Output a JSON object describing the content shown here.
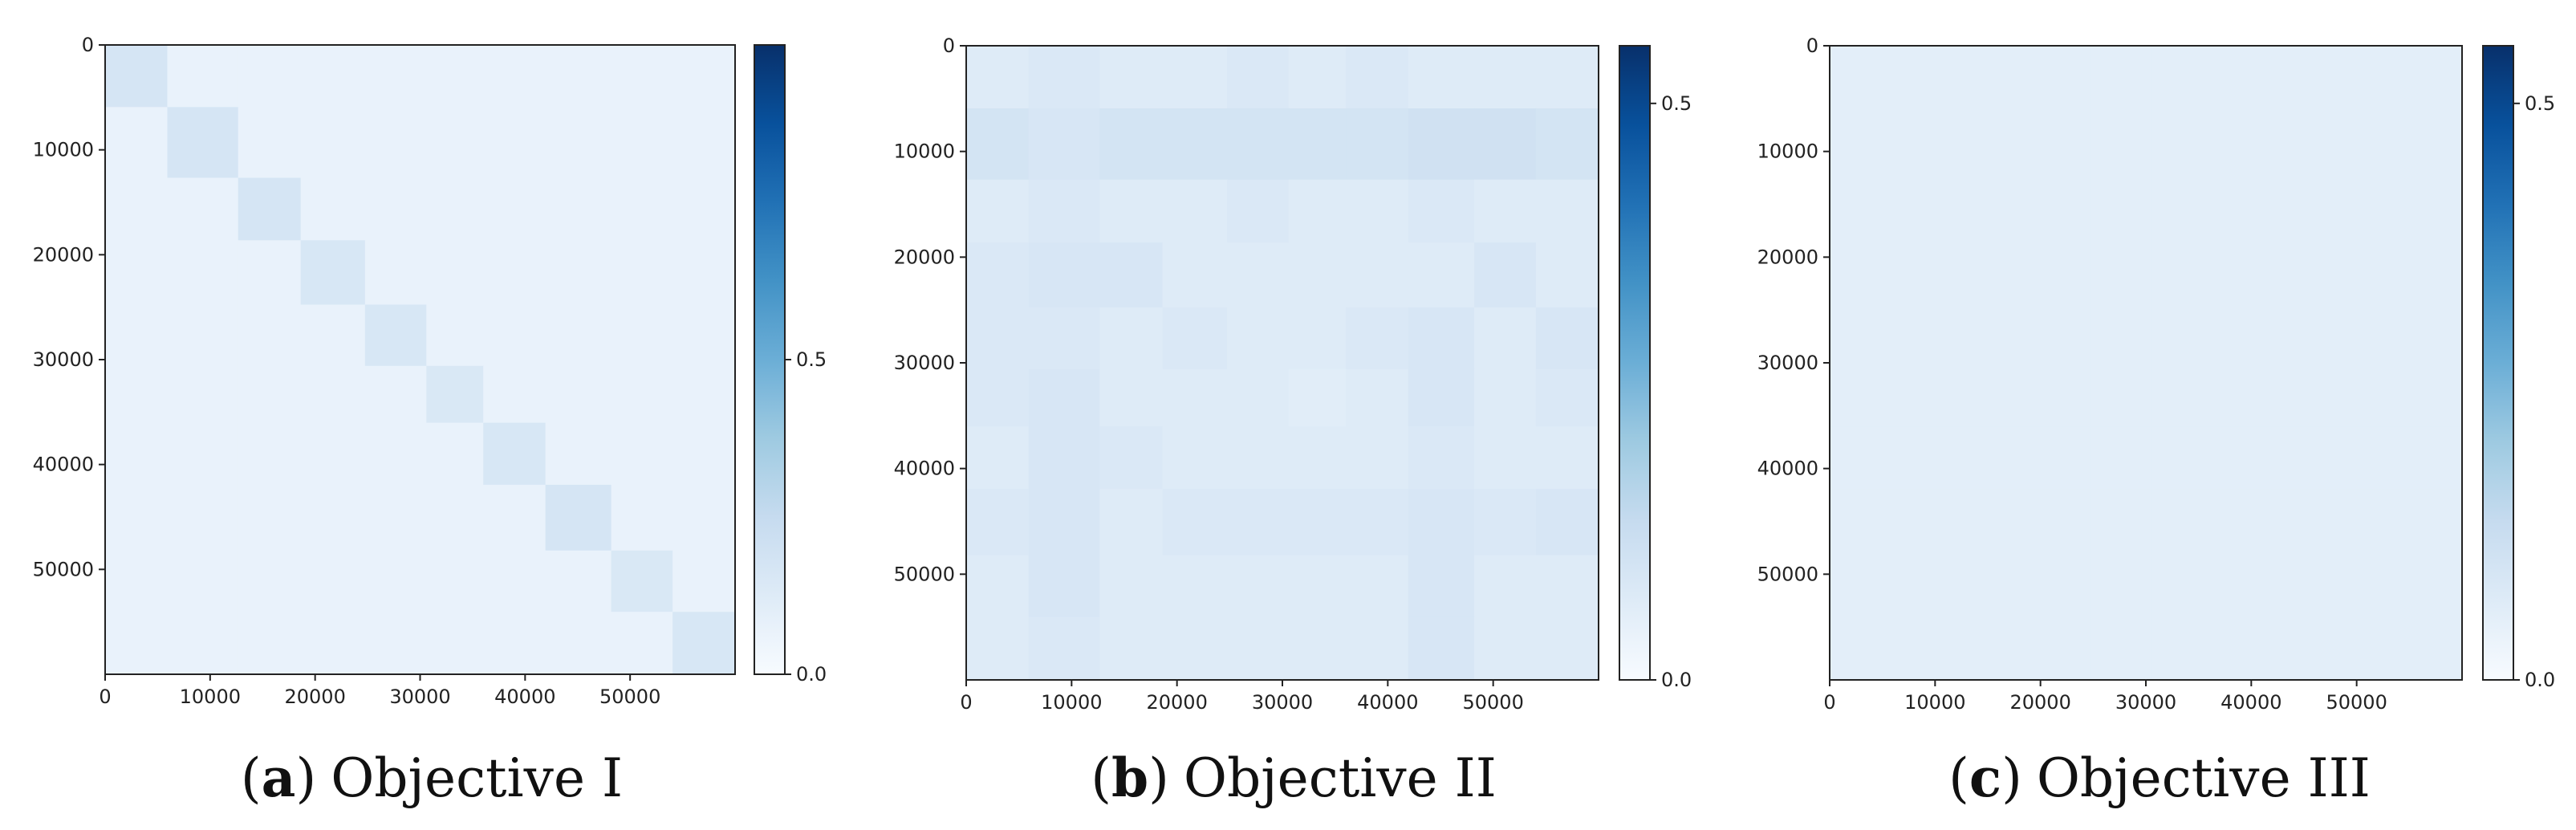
{
  "chart_data": [
    {
      "type": "heatmap",
      "caption_letter": "a",
      "caption_title": "Objective I",
      "x_ticks": [
        0,
        10000,
        20000,
        30000,
        40000,
        50000
      ],
      "y_ticks": [
        0,
        10000,
        20000,
        30000,
        40000,
        50000
      ],
      "xlim": [
        0,
        60000
      ],
      "ylim": [
        60000,
        0
      ],
      "colormap": "Blues",
      "colorbar": {
        "range": [
          0.0,
          1.0
        ],
        "ticks": [
          0.0,
          0.5
        ],
        "tick_labels": [
          "0.0",
          "0.5"
        ]
      },
      "block_boundaries": [
        0,
        5923,
        12665,
        18623,
        24754,
        30596,
        36017,
        41935,
        48200,
        54051,
        60000
      ],
      "diagonal_block_values": [
        0.17,
        0.17,
        0.17,
        0.16,
        0.16,
        0.15,
        0.16,
        0.17,
        0.15,
        0.16
      ],
      "off_diagonal_value": 0.07
    },
    {
      "type": "heatmap",
      "caption_letter": "b",
      "caption_title": "Objective II",
      "x_ticks": [
        0,
        10000,
        20000,
        30000,
        40000,
        50000
      ],
      "y_ticks": [
        0,
        10000,
        20000,
        30000,
        40000,
        50000
      ],
      "xlim": [
        0,
        60000
      ],
      "ylim": [
        60000,
        0
      ],
      "colormap": "Blues",
      "colorbar": {
        "range": [
          0.0,
          0.55
        ],
        "ticks": [
          0.0,
          0.5
        ],
        "tick_labels": [
          "0.0",
          "0.5"
        ]
      },
      "block_boundaries": [
        0,
        5923,
        12665,
        18623,
        24754,
        30596,
        36017,
        41935,
        48200,
        54051,
        60000
      ],
      "block_values": [
        [
          0.07,
          0.08,
          0.07,
          0.07,
          0.08,
          0.07,
          0.08,
          0.07,
          0.07,
          0.07
        ],
        [
          0.1,
          0.09,
          0.1,
          0.1,
          0.1,
          0.1,
          0.1,
          0.11,
          0.11,
          0.1
        ],
        [
          0.07,
          0.08,
          0.07,
          0.07,
          0.08,
          0.07,
          0.07,
          0.08,
          0.07,
          0.07
        ],
        [
          0.08,
          0.09,
          0.09,
          0.07,
          0.07,
          0.07,
          0.07,
          0.07,
          0.09,
          0.07
        ],
        [
          0.08,
          0.08,
          0.07,
          0.08,
          0.07,
          0.07,
          0.08,
          0.09,
          0.07,
          0.09
        ],
        [
          0.08,
          0.09,
          0.07,
          0.07,
          0.07,
          0.06,
          0.07,
          0.09,
          0.07,
          0.08
        ],
        [
          0.07,
          0.09,
          0.08,
          0.07,
          0.07,
          0.07,
          0.07,
          0.08,
          0.07,
          0.07
        ],
        [
          0.08,
          0.09,
          0.07,
          0.08,
          0.08,
          0.08,
          0.08,
          0.09,
          0.08,
          0.09
        ],
        [
          0.07,
          0.09,
          0.07,
          0.07,
          0.07,
          0.07,
          0.07,
          0.09,
          0.07,
          0.07
        ],
        [
          0.07,
          0.08,
          0.07,
          0.07,
          0.07,
          0.07,
          0.07,
          0.09,
          0.07,
          0.07
        ]
      ]
    },
    {
      "type": "heatmap",
      "caption_letter": "c",
      "caption_title": "Objective III",
      "x_ticks": [
        0,
        10000,
        20000,
        30000,
        40000,
        50000
      ],
      "y_ticks": [
        0,
        10000,
        20000,
        30000,
        40000,
        50000
      ],
      "xlim": [
        0,
        60000
      ],
      "ylim": [
        60000,
        0
      ],
      "colormap": "Blues",
      "colorbar": {
        "range": [
          0.0,
          0.55
        ],
        "ticks": [
          0.0,
          0.5
        ],
        "tick_labels": [
          "0.0",
          "0.5"
        ]
      },
      "block_boundaries": [
        0,
        5923,
        12665,
        18623,
        24754,
        30596,
        36017,
        41935,
        48200,
        54051,
        60000
      ],
      "uniform_value": 0.055
    }
  ]
}
